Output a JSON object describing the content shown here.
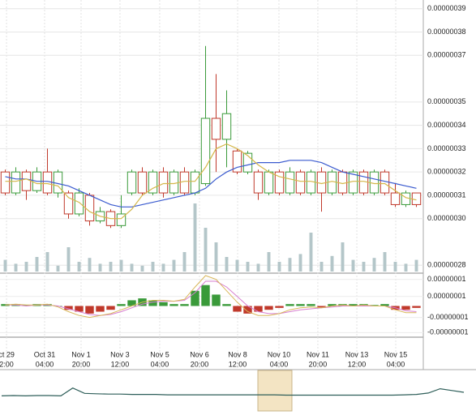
{
  "chart_data": {
    "type": "candlestick",
    "xlim": [
      -0.5,
      39.5
    ],
    "xticks": [
      {
        "value": 0.12,
        "label": "ct 29",
        "time": "2:00"
      },
      {
        "value": 3.73,
        "label": "Oct 31",
        "time": "04:00"
      },
      {
        "value": 7.19,
        "label": "Nov 1",
        "time": "20:00"
      },
      {
        "value": 10.88,
        "label": "Nov 3",
        "time": "12:00"
      },
      {
        "value": 14.65,
        "label": "Nov 5",
        "time": "04:00"
      },
      {
        "value": 18.42,
        "label": "Nov 6",
        "time": "20:00"
      },
      {
        "value": 22.04,
        "label": "Nov 8",
        "time": "12:00"
      },
      {
        "value": 25.96,
        "label": "Nov 10",
        "time": "04:00"
      },
      {
        "value": 29.65,
        "label": "Nov 11",
        "time": "20:00"
      },
      {
        "value": 33.35,
        "label": "Nov 13",
        "time": "12:00"
      },
      {
        "value": 37.04,
        "label": "Nov 15",
        "time": "04:00"
      }
    ],
    "ylim": [
      2.78e-07,
      3.92e-07
    ],
    "yticks": [
      {
        "value": 3.9e-07,
        "label": "0.00000039"
      },
      {
        "value": 3.8e-07,
        "label": "0.00000038"
      },
      {
        "value": 3.7e-07,
        "label": "0.00000037"
      },
      {
        "value": 3.5e-07,
        "label": "0.00000035"
      },
      {
        "value": 3.4e-07,
        "label": "0.00000034"
      },
      {
        "value": 3.3e-07,
        "label": "0.00000033"
      },
      {
        "value": 3.2e-07,
        "label": "0.00000032"
      },
      {
        "value": 3.1e-07,
        "label": "0.00000031"
      },
      {
        "value": 3e-07,
        "label": "0.00000030"
      },
      {
        "value": 2.8e-07,
        "label": "0.00000028"
      }
    ],
    "grid": true,
    "up_color": "#3a9a3a",
    "down_color": "#c0392b",
    "open": [
      3.2e-07,
      3.11e-07,
      3.2e-07,
      3.12e-07,
      3.2e-07,
      3.11e-07,
      3.11e-07,
      3.02e-07,
      3.1e-07,
      2.99e-07,
      3.03e-07,
      2.97e-07,
      3.11e-07,
      3.2e-07,
      3.11e-07,
      3.2e-07,
      3.11e-07,
      3.2e-07,
      3.11e-07,
      3.15e-07,
      3.43e-07,
      3.34e-07,
      3.29e-07,
      3.2e-07,
      3.2e-07,
      3.11e-07,
      3.2e-07,
      3.11e-07,
      3.2e-07,
      3.11e-07,
      3.2e-07,
      3.11e-07,
      3.2e-07,
      3.11e-07,
      3.2e-07,
      3.11e-07,
      3.2e-07,
      3.11e-07,
      3.06e-07,
      3.11e-07
    ],
    "high": [
      3.21e-07,
      3.22e-07,
      3.21e-07,
      3.22e-07,
      3.3e-07,
      3.21e-07,
      3.12e-07,
      3.13e-07,
      3.11e-07,
      3.05e-07,
      3.04e-07,
      3.1e-07,
      3.21e-07,
      3.22e-07,
      3.21e-07,
      3.22e-07,
      3.21e-07,
      3.22e-07,
      3.21e-07,
      3.74e-07,
      3.62e-07,
      3.55e-07,
      3.3e-07,
      3.29e-07,
      3.21e-07,
      3.21e-07,
      3.21e-07,
      3.22e-07,
      3.21e-07,
      3.21e-07,
      3.22e-07,
      3.21e-07,
      3.21e-07,
      3.21e-07,
      3.21e-07,
      3.21e-07,
      3.21e-07,
      3.15e-07,
      3.12e-07,
      3.11e-07
    ],
    "low": [
      3.1e-07,
      3.1e-07,
      3.08e-07,
      3.11e-07,
      3.1e-07,
      3.09e-07,
      3e-07,
      3.01e-07,
      2.97e-07,
      2.98e-07,
      2.96e-07,
      2.96e-07,
      3.1e-07,
      3.1e-07,
      3.1e-07,
      3.09e-07,
      3.1e-07,
      3.1e-07,
      3.1e-07,
      3.14e-07,
      3.2e-07,
      3.22e-07,
      3.19e-07,
      3.19e-07,
      3.08e-07,
      3.1e-07,
      3.1e-07,
      3.1e-07,
      3.1e-07,
      3.1e-07,
      3.03e-07,
      3.1e-07,
      3.1e-07,
      3.1e-07,
      3.1e-07,
      3.1e-07,
      3.1e-07,
      3.05e-07,
      3.05e-07,
      3.05e-07
    ],
    "close": [
      3.11e-07,
      3.2e-07,
      3.12e-07,
      3.2e-07,
      3.11e-07,
      3.2e-07,
      3.02e-07,
      3.11e-07,
      2.99e-07,
      3.03e-07,
      2.97e-07,
      3.02e-07,
      3.2e-07,
      3.11e-07,
      3.2e-07,
      3.11e-07,
      3.2e-07,
      3.11e-07,
      3.2e-07,
      3.43e-07,
      3.34e-07,
      3.45e-07,
      3.2e-07,
      3.28e-07,
      3.11e-07,
      3.2e-07,
      3.11e-07,
      3.2e-07,
      3.11e-07,
      3.2e-07,
      3.11e-07,
      3.2e-07,
      3.11e-07,
      3.2e-07,
      3.11e-07,
      3.2e-07,
      3.11e-07,
      3.06e-07,
      3.11e-07,
      3.06e-07
    ],
    "volume": [
      12,
      8,
      10,
      15,
      20,
      6,
      25,
      10,
      14,
      8,
      10,
      12,
      8,
      6,
      10,
      8,
      12,
      20,
      70,
      45,
      30,
      15,
      12,
      10,
      8,
      20,
      10,
      14,
      18,
      40,
      10,
      16,
      30,
      12,
      10,
      14,
      20,
      10,
      8,
      12
    ],
    "volume_ylim": [
      0,
      100
    ],
    "volume_color": "#b4c6c9",
    "moving_averages": [
      {
        "color": "#3b5bcf",
        "values": [
          3.18e-07,
          3.17e-07,
          3.17e-07,
          3.16e-07,
          3.16e-07,
          3.15e-07,
          3.14e-07,
          3.12e-07,
          3.1e-07,
          3.08e-07,
          3.06e-07,
          3.05e-07,
          3.05e-07,
          3.06e-07,
          3.07e-07,
          3.08e-07,
          3.09e-07,
          3.1e-07,
          3.11e-07,
          3.13e-07,
          3.17e-07,
          3.2e-07,
          3.22e-07,
          3.23e-07,
          3.24e-07,
          3.24e-07,
          3.24e-07,
          3.25e-07,
          3.25e-07,
          3.25e-07,
          3.24e-07,
          3.22e-07,
          3.2e-07,
          3.19e-07,
          3.18e-07,
          3.17e-07,
          3.16e-07,
          3.15e-07,
          3.14e-07,
          3.13e-07
        ]
      },
      {
        "color": "#d4b74a",
        "values": [
          3.16e-07,
          3.16e-07,
          3.17e-07,
          3.15e-07,
          3.15e-07,
          3.14e-07,
          3.09e-07,
          3.07e-07,
          3.03e-07,
          3.01e-07,
          3e-07,
          3e-07,
          3.04e-07,
          3.1e-07,
          3.13e-07,
          3.15e-07,
          3.15e-07,
          3.16e-07,
          3.16e-07,
          3.22e-07,
          3.3e-07,
          3.32e-07,
          3.3e-07,
          3.27e-07,
          3.23e-07,
          3.2e-07,
          3.18e-07,
          3.17e-07,
          3.16e-07,
          3.16e-07,
          3.15e-07,
          3.16e-07,
          3.15e-07,
          3.16e-07,
          3.16e-07,
          3.15e-07,
          3.15e-07,
          3.12e-07,
          3.09e-07,
          3.08e-07
        ]
      }
    ],
    "macd": {
      "ylim": [
        -1.6e-08,
        1.6e-08
      ],
      "yticks": [
        {
          "value": 1.4e-08,
          "label": "0.00000001"
        },
        {
          "value": 5e-09,
          "label": "0.00000001"
        },
        {
          "value": -6e-09,
          "label": "-0.00000001"
        },
        {
          "value": -1.4e-08,
          "label": "-0.00000001"
        }
      ],
      "histogram": [
        1e-09,
        1e-09,
        5e-10,
        1e-09,
        1e-09,
        0,
        -2e-09,
        -3e-09,
        -4e-09,
        -3e-09,
        -2e-09,
        1e-09,
        3e-09,
        4e-09,
        3e-09,
        2e-09,
        1e-09,
        1e-09,
        8e-09,
        1.1e-08,
        6e-09,
        1e-09,
        -3e-09,
        -4e-09,
        -3e-09,
        -2e-09,
        -1e-09,
        1e-09,
        1e-09,
        1e-09,
        -1e-09,
        1e-09,
        1e-09,
        1e-09,
        1e-09,
        5e-10,
        1e-09,
        -2e-09,
        -2e-09,
        -1e-09
      ],
      "lines": [
        {
          "color": "#d77fd0",
          "values": [
            5e-10,
            5e-10,
            0,
            5e-10,
            5e-10,
            0,
            -1.5e-09,
            -3e-09,
            -4.5e-09,
            -5e-09,
            -4.5e-09,
            -3e-09,
            -1e-09,
            1e-09,
            2e-09,
            2.5e-09,
            2.5e-09,
            3e-09,
            7e-09,
            1.3e-08,
            1.3e-08,
            1e-08,
            5e-09,
            0,
            -3e-09,
            -4e-09,
            -4e-09,
            -3e-09,
            -2e-09,
            -1.5e-09,
            -1e-09,
            -5e-10,
            0,
            0,
            0,
            0,
            0,
            -1e-09,
            -2.5e-09,
            -3e-09
          ]
        },
        {
          "color": "#d9b75a",
          "values": [
            5e-10,
            1e-09,
            5e-10,
            5e-10,
            1e-09,
            -5e-10,
            -3e-09,
            -5e-09,
            -6e-09,
            -5e-09,
            -4e-09,
            -2e-09,
            0,
            2e-09,
            3e-09,
            3e-09,
            2.5e-09,
            3.5e-09,
            1e-08,
            1.6e-08,
            1.4e-08,
            8e-09,
            2e-09,
            -3e-09,
            -5e-09,
            -5e-09,
            -4e-09,
            -2e-09,
            -1e-09,
            -5e-10,
            -1e-09,
            0,
            5e-10,
            0,
            5e-10,
            0,
            0,
            -2e-09,
            -3.5e-09,
            -3.5e-09
          ]
        }
      ]
    },
    "navigator": {
      "color": "#2f5f5a",
      "ylim": [
        0,
        100
      ],
      "values": [
        40,
        41,
        40,
        41,
        41,
        40,
        62,
        47,
        46,
        45,
        45,
        44,
        44,
        44,
        43,
        43,
        43,
        43,
        43,
        43,
        43,
        43,
        43,
        43,
        42,
        42,
        42,
        42,
        42,
        42,
        42,
        42,
        42,
        42,
        43,
        44,
        48,
        60,
        55,
        50
      ]
    }
  }
}
